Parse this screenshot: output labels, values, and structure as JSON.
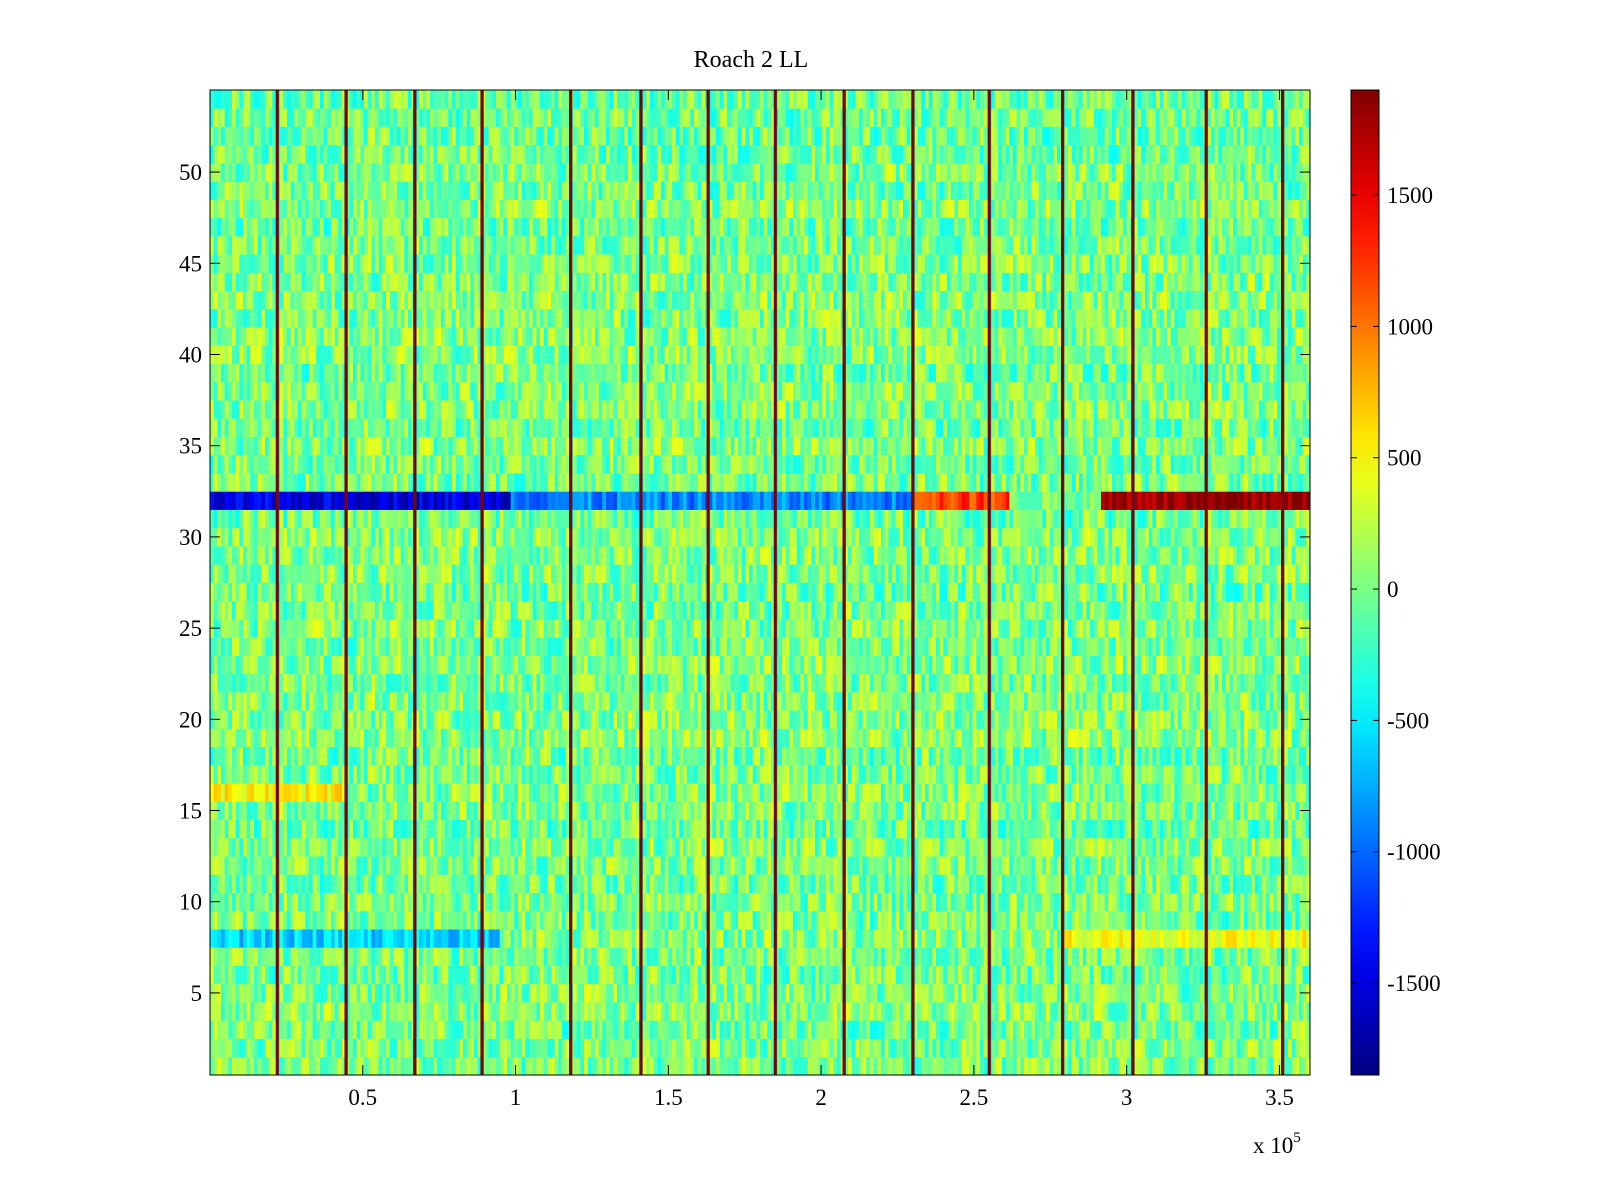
{
  "chart_data": {
    "type": "heatmap",
    "title": "Roach 2 LL",
    "xlabel": "",
    "ylabel": "",
    "x_multiplier_label": "x 10",
    "x_multiplier_exponent": "5",
    "xlim": [
      0,
      360000
    ],
    "ylim": [
      0.5,
      54.5
    ],
    "x_ticks": [
      0.5,
      1,
      1.5,
      2,
      2.5,
      3,
      3.5
    ],
    "x_tick_labels": [
      "0.5",
      "1",
      "1.5",
      "2",
      "2.5",
      "3",
      "3.5"
    ],
    "y_ticks": [
      5,
      10,
      15,
      20,
      25,
      30,
      35,
      40,
      45,
      50
    ],
    "y_tick_labels": [
      "5",
      "10",
      "15",
      "20",
      "25",
      "30",
      "35",
      "40",
      "45",
      "50"
    ],
    "colormap": "jet",
    "clim": [
      -1850,
      1900
    ],
    "colorbar": {
      "ticks": [
        -1500,
        -1000,
        -500,
        0,
        500,
        1000,
        1500
      ],
      "tick_labels": [
        "-1500",
        "-1000",
        "-500",
        "0",
        "500",
        "1000",
        "1500"
      ],
      "placement": "right"
    },
    "typical_background_range": [
      -400,
      400
    ],
    "vertical_artifact_x": [
      22000,
      44500,
      67000,
      89000,
      118000,
      141000,
      163000,
      185000,
      207500,
      230000,
      255000,
      279000,
      302000,
      326000,
      351000
    ],
    "vertical_artifact_value": 1900,
    "row_features": [
      {
        "channel": 32,
        "x_start": 0,
        "x_end": 98000,
        "approx_value": -1500
      },
      {
        "channel": 32,
        "x_start": 98000,
        "x_end": 230000,
        "approx_value": -900
      },
      {
        "channel": 32,
        "x_start": 230000,
        "x_end": 262000,
        "approx_value": 1200
      },
      {
        "channel": 32,
        "x_start": 262000,
        "x_end": 292000,
        "approx_value": 0
      },
      {
        "channel": 32,
        "x_start": 292000,
        "x_end": 360000,
        "approx_value": 1800
      },
      {
        "channel": 16,
        "x_start": 0,
        "x_end": 45000,
        "approx_value": 500
      },
      {
        "channel": 8,
        "x_start": 0,
        "x_end": 95000,
        "approx_value": -600
      },
      {
        "channel": 8,
        "x_start": 280000,
        "x_end": 360000,
        "approx_value": 450
      }
    ]
  }
}
